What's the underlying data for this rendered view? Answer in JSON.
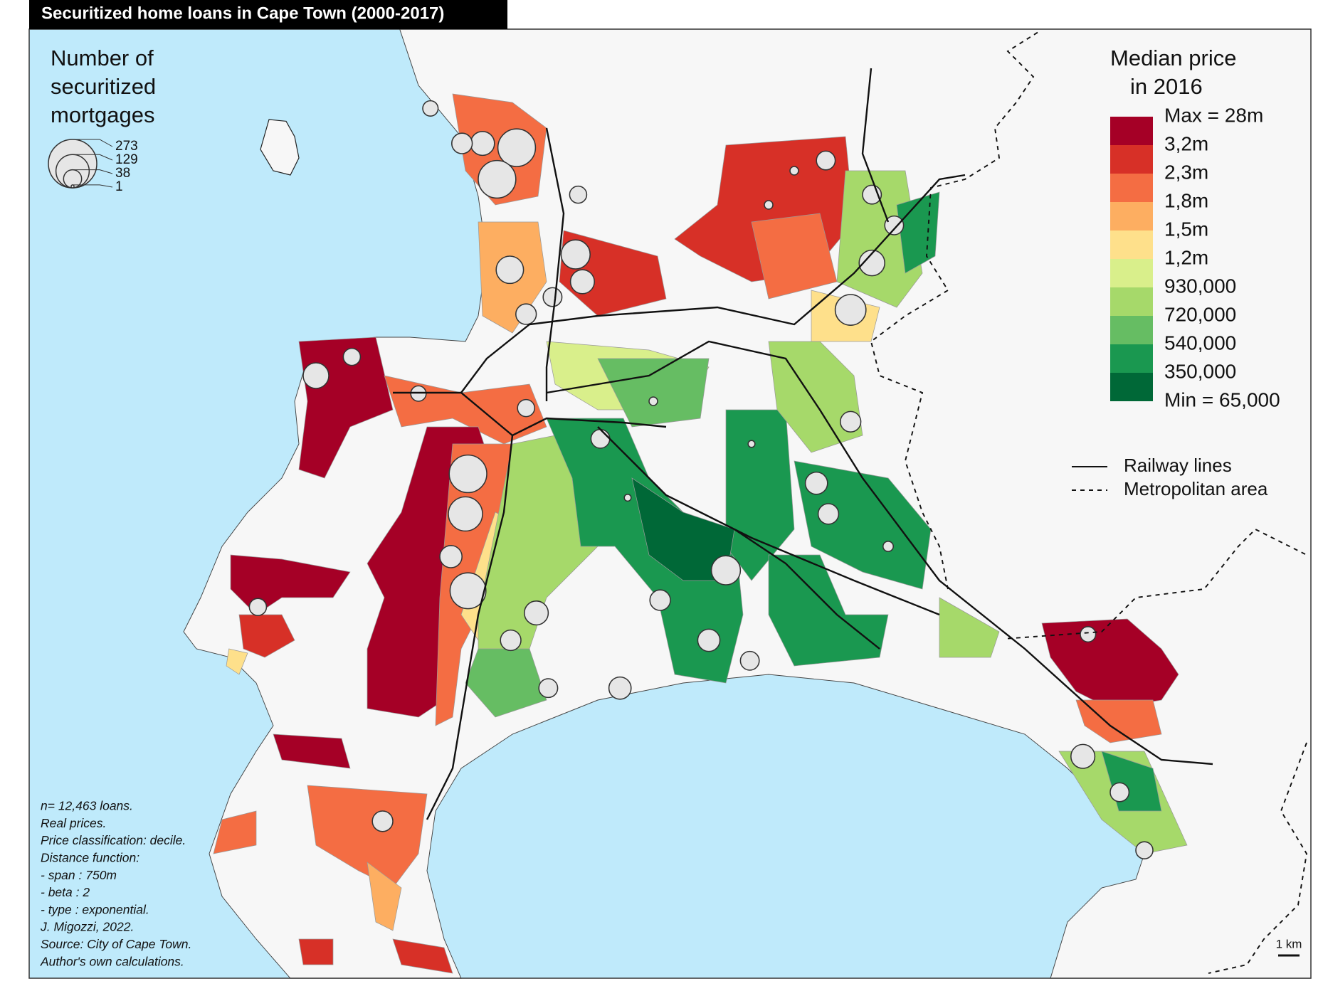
{
  "title": "Securitized home loans in Cape Town (2000-2017)",
  "size_legend": {
    "title": [
      "Number of",
      "securitized",
      "mortgages"
    ],
    "values": [
      273,
      129,
      38,
      1
    ]
  },
  "color_legend": {
    "title": [
      "Median price",
      "in 2016"
    ],
    "labels": [
      "Max = 28m",
      "3,2m",
      "2,3m",
      "1,8m",
      "1,5m",
      "1,2m",
      "930,000",
      "720,000",
      "540,000",
      "350,000",
      "Min = 65,000"
    ],
    "colors": [
      "#a50026",
      "#d73027",
      "#f46d43",
      "#fdae61",
      "#fee08b",
      "#d9ef8b",
      "#a6d96a",
      "#66bd63",
      "#1a9850",
      "#006837"
    ]
  },
  "line_legend": [
    "Railway lines",
    "Metropolitan area"
  ],
  "notes": [
    "n= 12,463 loans.",
    "Real prices.",
    "Price classification: decile.",
    "Distance function:",
    "- span : 750m",
    "- beta : 2",
    "- type : exponential.",
    "J. Migozzi, 2022.",
    "Source: City of Cape Town.",
    "Author's own calculations."
  ],
  "scale_bar": "1 km"
}
